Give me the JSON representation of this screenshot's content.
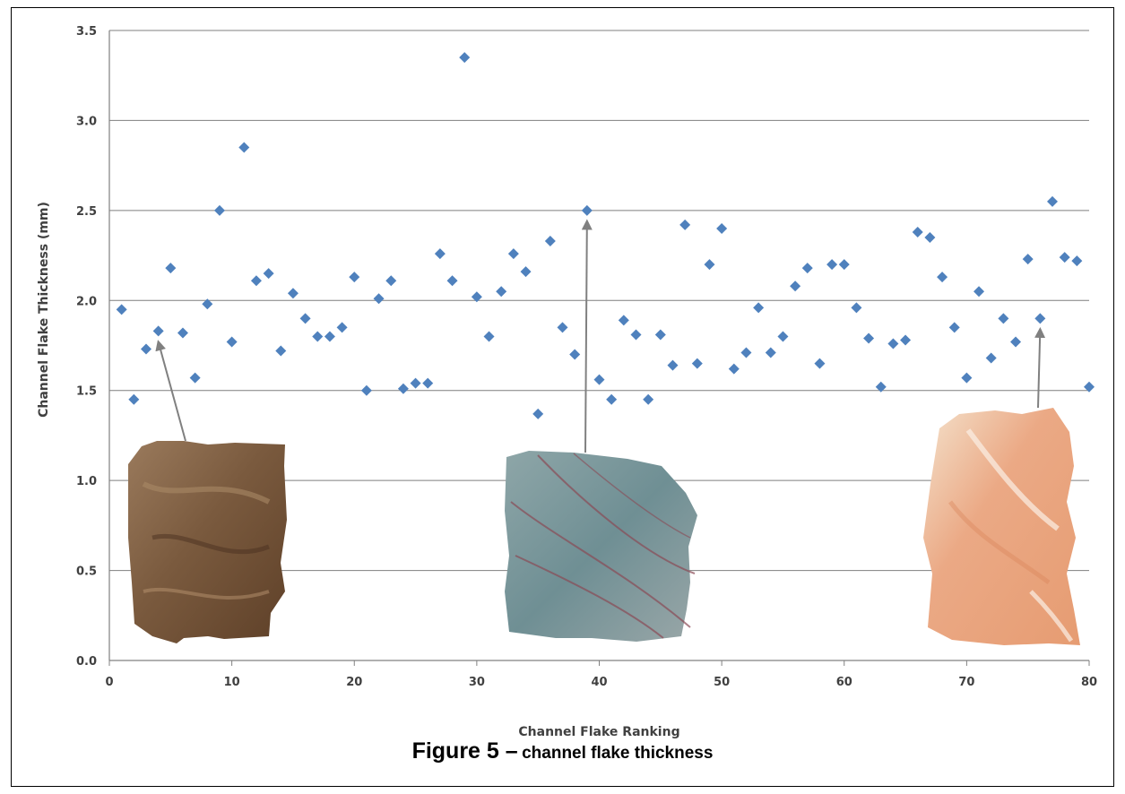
{
  "chart_data": {
    "type": "scatter",
    "xlabel": "Channel Flake Ranking",
    "ylabel": "Channel Flake Thickness (mm)",
    "xlim": [
      0,
      80
    ],
    "ylim": [
      0.0,
      3.5
    ],
    "x_ticks": [
      "0",
      "10",
      "20",
      "30",
      "40",
      "50",
      "60",
      "70",
      "80"
    ],
    "y_ticks": [
      "0.0",
      "0.5",
      "1.0",
      "1.5",
      "2.0",
      "2.5",
      "3.0",
      "3.5"
    ],
    "grid": "horizontal",
    "marker_color": "#4f81bd",
    "series": [
      {
        "x": [
          1,
          2,
          3,
          4,
          5,
          6,
          7,
          8,
          9,
          10,
          11,
          12,
          13,
          14,
          15,
          16,
          17,
          18,
          19,
          20,
          21,
          22,
          23,
          24,
          25,
          26,
          27,
          28,
          29,
          30,
          31,
          32,
          33,
          34,
          35,
          36,
          37,
          38,
          39,
          40,
          41,
          42,
          43,
          44,
          45,
          46,
          47,
          48,
          49,
          50,
          51,
          52,
          53,
          54,
          55,
          56,
          57,
          58,
          59,
          60,
          61,
          62,
          63,
          64,
          65,
          66,
          67,
          68,
          69,
          70,
          71,
          72,
          73,
          74,
          75,
          76,
          77,
          78,
          79,
          80
        ],
        "y": [
          1.95,
          1.45,
          1.73,
          1.83,
          2.18,
          1.82,
          1.57,
          1.98,
          2.5,
          1.77,
          2.85,
          2.11,
          2.15,
          1.72,
          2.04,
          1.9,
          1.8,
          1.8,
          1.85,
          2.13,
          1.5,
          2.01,
          2.11,
          1.51,
          1.54,
          1.54,
          2.26,
          2.11,
          3.35,
          2.02,
          1.8,
          2.05,
          2.26,
          2.16,
          1.37,
          2.33,
          1.85,
          1.7,
          2.5,
          1.56,
          1.45,
          1.89,
          1.81,
          1.45,
          1.81,
          1.64,
          2.42,
          1.65,
          2.2,
          2.4,
          1.62,
          1.71,
          1.96,
          1.71,
          1.8,
          2.08,
          2.18,
          1.65,
          2.2,
          2.2,
          1.96,
          1.79,
          1.52,
          1.76,
          1.78,
          2.38,
          2.35,
          2.13,
          1.85,
          1.57,
          2.05,
          1.68,
          1.9,
          1.77,
          2.23,
          1.9,
          2.55,
          2.24,
          2.22,
          1.52
        ]
      }
    ],
    "annotations": [
      {
        "points_to_x": 4,
        "points_to_y": 1.83,
        "image": "brown-flake"
      },
      {
        "points_to_x": 39,
        "points_to_y": 2.5,
        "image": "blue-gray-flake"
      },
      {
        "points_to_x": 76,
        "points_to_y": 1.9,
        "image": "peach-flake"
      }
    ]
  },
  "caption": {
    "figure_label": "Figure 5 –",
    "text": "channel flake thickness"
  }
}
